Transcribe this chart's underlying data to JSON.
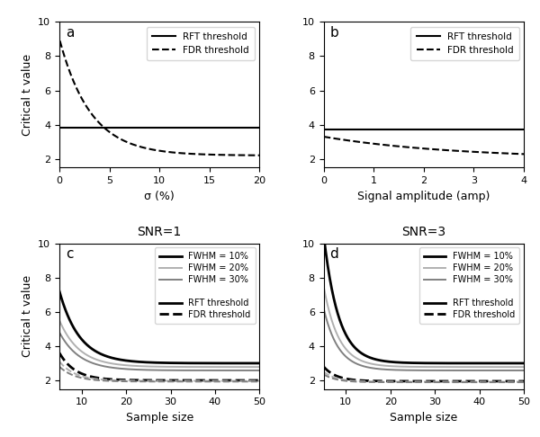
{
  "panel_a": {
    "label": "a",
    "xlabel": "σ (%)",
    "xlim": [
      0,
      20
    ],
    "ylim": [
      1.5,
      10
    ],
    "yticks": [
      2,
      4,
      6,
      8,
      10
    ],
    "xticks": [
      0,
      5,
      10,
      15,
      20
    ],
    "rft_threshold": 3.82,
    "fdr_x_start": 0.05,
    "fdr_start": 9.0,
    "fdr_end": 2.2,
    "fdr_decay": 0.32
  },
  "panel_b": {
    "label": "b",
    "xlabel": "Signal amplitude (amp)",
    "xlim": [
      0,
      4
    ],
    "ylim": [
      1.5,
      10
    ],
    "yticks": [
      2,
      4,
      6,
      8,
      10
    ],
    "xticks": [
      0,
      1,
      2,
      3,
      4
    ],
    "rft_threshold": 3.72,
    "fdr_x_start": 0.0,
    "fdr_start": 3.3,
    "fdr_end": 2.0,
    "fdr_decay": 0.38
  },
  "panel_c": {
    "label": "c",
    "title": "SNR=1",
    "xlabel": "Sample size",
    "xlim": [
      5,
      50
    ],
    "ylim": [
      1.5,
      10
    ],
    "yticks": [
      2,
      4,
      6,
      8,
      10
    ],
    "xticks": [
      10,
      20,
      30,
      40,
      50
    ],
    "snr": 1,
    "fwhm_colors": [
      "#000000",
      "#b0b0b0",
      "#808080"
    ],
    "fwhm_labels": [
      "FWHM = 10%",
      "FWHM = 20%",
      "FWHM = 30%"
    ],
    "rft_starts": [
      7.2,
      5.5,
      4.8
    ],
    "rft_ends": [
      3.0,
      2.78,
      2.58
    ],
    "fdr_starts": [
      3.6,
      3.1,
      2.8
    ],
    "fdr_ends": [
      2.0,
      1.97,
      1.93
    ],
    "rft_decay": 0.22,
    "fdr_decay": 0.28
  },
  "panel_d": {
    "label": "d",
    "title": "SNR=3",
    "xlabel": "Sample size",
    "xlim": [
      5,
      50
    ],
    "ylim": [
      1.5,
      10
    ],
    "yticks": [
      2,
      4,
      6,
      8,
      10
    ],
    "xticks": [
      10,
      20,
      30,
      40,
      50
    ],
    "snr": 3,
    "fwhm_colors": [
      "#000000",
      "#b0b0b0",
      "#808080"
    ],
    "fwhm_labels": [
      "FWHM = 10%",
      "FWHM = 20%",
      "FWHM = 30%"
    ],
    "rft_starts": [
      10.5,
      7.5,
      6.2
    ],
    "rft_ends": [
      3.0,
      2.78,
      2.58
    ],
    "fdr_starts": [
      2.8,
      2.5,
      2.35
    ],
    "fdr_ends": [
      1.95,
      1.92,
      1.89
    ],
    "rft_decay": 0.3,
    "fdr_decay": 0.35
  },
  "ylabel": "Critical t value",
  "legend_rft": "RFT threshold",
  "legend_fdr": "FDR threshold"
}
